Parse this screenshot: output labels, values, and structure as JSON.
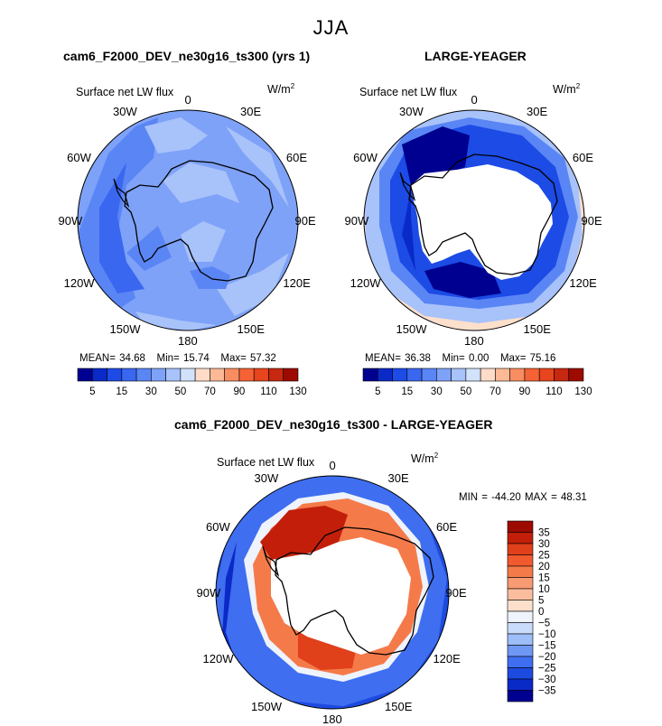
{
  "chart_data": [
    {
      "type": "heatmap",
      "projection": "south polar stereographic",
      "title": "cam6_F2000_DEV_ne30g16_ts300 (yrs 1)",
      "variable_label": "Surface net LW flux",
      "units_label": "W/m",
      "units_sup": "2",
      "lon_labels": [
        "0",
        "30E",
        "60E",
        "90E",
        "120E",
        "150E",
        "180",
        "150W",
        "120W",
        "90W",
        "60W",
        "30W"
      ],
      "stats": {
        "mean_label": "MEAN=",
        "mean": "34.68",
        "min_label": "Min=",
        "min": "15.74",
        "max_label": "Max=",
        "max": "57.32"
      },
      "colorbar": {
        "orientation": "horizontal",
        "tick_labels": [
          "5",
          "15",
          "30",
          "50",
          "70",
          "90",
          "110",
          "130"
        ],
        "colors": [
          "#000090",
          "#0a2ac8",
          "#1c4be5",
          "#3a67f0",
          "#5a85f5",
          "#7ea2f8",
          "#a8c2fa",
          "#d2e2fb",
          "#ffdcc8",
          "#fbb995",
          "#f88d62",
          "#f56235",
          "#e6451e",
          "#c62810",
          "#9c0a00"
        ]
      }
    },
    {
      "type": "heatmap",
      "projection": "south polar stereographic",
      "title": "LARGE-YEAGER",
      "variable_label": "Surface net LW flux",
      "units_label": "W/m",
      "units_sup": "2",
      "lon_labels": [
        "0",
        "30E",
        "60E",
        "90E",
        "120E",
        "150E",
        "180",
        "150W",
        "120W",
        "90W",
        "60W",
        "30W"
      ],
      "stats": {
        "mean_label": "MEAN=",
        "mean": "36.38",
        "min_label": "Min=",
        "min": "0.00",
        "max_label": "Max=",
        "max": "75.16"
      },
      "colorbar": {
        "orientation": "horizontal",
        "tick_labels": [
          "5",
          "15",
          "30",
          "50",
          "70",
          "90",
          "110",
          "130"
        ],
        "colors": [
          "#000090",
          "#0a2ac8",
          "#1c4be5",
          "#3a67f0",
          "#5a85f5",
          "#7ea2f8",
          "#a8c2fa",
          "#d2e2fb",
          "#ffdcc8",
          "#fbb995",
          "#f88d62",
          "#f56235",
          "#e6451e",
          "#c62810",
          "#9c0a00"
        ]
      }
    },
    {
      "type": "heatmap",
      "projection": "south polar stereographic",
      "title": "cam6_F2000_DEV_ne30g16_ts300 - LARGE-YEAGER",
      "variable_label": "Surface net LW flux",
      "units_label": "W/m",
      "units_sup": "2",
      "lon_labels": [
        "0",
        "30E",
        "60E",
        "90E",
        "120E",
        "150E",
        "180",
        "150W",
        "120W",
        "90W",
        "60W",
        "30W"
      ],
      "range_text": "MIN = -44.20 MAX =  48.31",
      "colorbar": {
        "orientation": "vertical",
        "tick_labels": [
          "35",
          "30",
          "25",
          "20",
          "15",
          "10",
          "5",
          "0",
          "−5",
          "−10",
          "−15",
          "−20",
          "−25",
          "−30",
          "−35"
        ],
        "colors": [
          "#9c0a00",
          "#c21e0a",
          "#e0401a",
          "#f05a2e",
          "#f57a4a",
          "#f89b72",
          "#fbbd9e",
          "#fde0cc",
          "#eef3fc",
          "#cadcfb",
          "#9ebefa",
          "#6f98f5",
          "#3f6ef0",
          "#1d4be0",
          "#0a2ac8",
          "#000090"
        ]
      }
    }
  ],
  "page": {
    "main_title": "JJA"
  }
}
